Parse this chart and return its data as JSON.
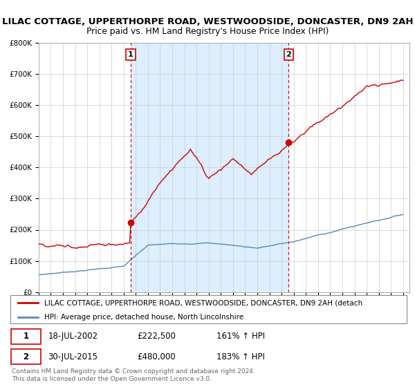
{
  "title": "LILAC COTTAGE, UPPERTHORPE ROAD, WESTWOODSIDE, DONCASTER, DN9 2AH",
  "subtitle": "Price paid vs. HM Land Registry's House Price Index (HPI)",
  "ylim": [
    0,
    800000
  ],
  "ytick_vals": [
    0,
    100000,
    200000,
    300000,
    400000,
    500000,
    600000,
    700000,
    800000
  ],
  "ytick_labels": [
    "£0",
    "£100K",
    "£200K",
    "£300K",
    "£400K",
    "£500K",
    "£600K",
    "£700K",
    "£800K"
  ],
  "xlim_start": 1995,
  "xlim_end": 2025.5,
  "sale1_date": 2002.58,
  "sale1_price": 222500,
  "sale1_label": "1",
  "sale1_display": "18-JUL-2002",
  "sale1_price_display": "£222,500",
  "sale1_hpi_display": "161% ↑ HPI",
  "sale2_date": 2015.57,
  "sale2_price": 480000,
  "sale2_label": "2",
  "sale2_display": "30-JUL-2015",
  "sale2_price_display": "£480,000",
  "sale2_hpi_display": "183% ↑ HPI",
  "red_color": "#cc0000",
  "blue_color": "#5588bb",
  "shade_color": "#ddeeff",
  "legend_red": "LILAC COTTAGE, UPPERTHORPE ROAD, WESTWOODSIDE, DONCASTER, DN9 2AH (detach",
  "legend_blue": "HPI: Average price, detached house, North Lincolnshire",
  "footer": "Contains HM Land Registry data © Crown copyright and database right 2024.\nThis data is licensed under the Open Government Licence v3.0.",
  "bg_color": "#ffffff",
  "grid_color": "#cccccc",
  "title_fs": 9.5,
  "subtitle_fs": 8.8
}
